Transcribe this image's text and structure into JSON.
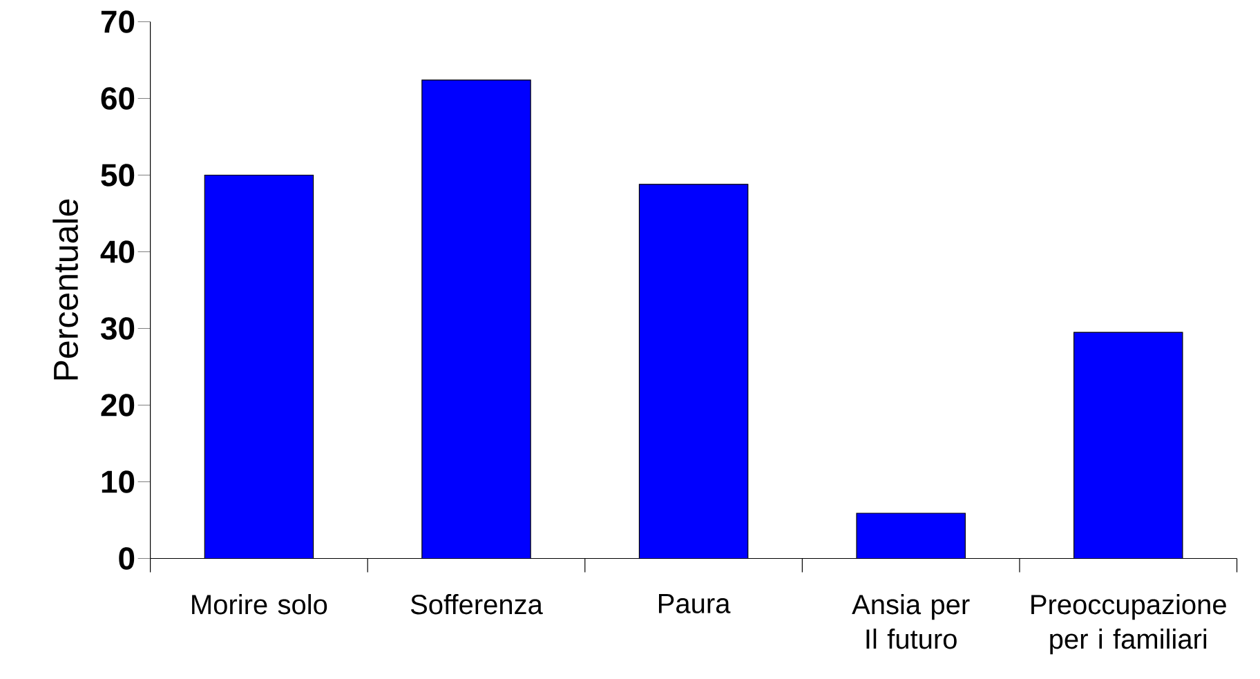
{
  "chart_data": {
    "type": "bar",
    "ylabel": "Percentuale",
    "categories": [
      "Morire solo",
      "Sofferenza",
      "Paura",
      "Ansia per Il futuro",
      "Preoccupazione per i familiari"
    ],
    "values": [
      50.0,
      62.4,
      48.8,
      5.9,
      29.5
    ],
    "color": "#0000ff",
    "ylim": [
      0,
      70
    ],
    "yticks": [
      0,
      10,
      20,
      30,
      40,
      50,
      60,
      70
    ]
  }
}
